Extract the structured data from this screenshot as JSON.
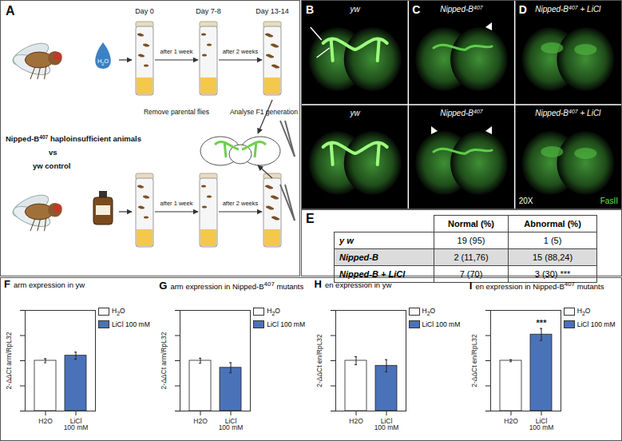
{
  "panel_A": {
    "label": "A",
    "days": [
      "Day 0",
      "Day 7-8",
      "Day 13-14"
    ],
    "rows": [
      {
        "treatment": "H2O",
        "steps": [
          "after 1 week",
          "after 2 weeks"
        ]
      },
      {
        "steps": [
          "after 1 week",
          "after 2 weeks"
        ]
      }
    ],
    "middle": [
      "Remove parental flies",
      "Analyse F1 generation"
    ],
    "genotypes": [
      "Nipped-B407 haploinsufficient animals",
      "vs",
      "yw control"
    ]
  },
  "panels_BD": {
    "panels": [
      {
        "label": "B",
        "titles": [
          "yw",
          "yw"
        ]
      },
      {
        "label": "C",
        "titles": [
          "Nipped-B407",
          "Nipped-B407"
        ]
      },
      {
        "label": "D",
        "titles": [
          "Nipped-B407 + LiCl",
          "Nipped-B407 + LiCl"
        ]
      }
    ],
    "magnification": "20X",
    "stain": "FasII"
  },
  "table": {
    "label": "E",
    "header": [
      "Normal (%)",
      "Abnormal (%)"
    ],
    "rows": [
      {
        "name": "y w",
        "cells": [
          "19 (95)",
          "1 (5)"
        ]
      },
      {
        "name": "Nipped-B",
        "cells": [
          "2 (11,76)",
          "15 (88,24)"
        ]
      },
      {
        "name": "Nipped-B + LiCl",
        "cells": [
          "7 (70)",
          "3 (30) ***"
        ]
      }
    ]
  },
  "chart_data": [
    {
      "type": "bar",
      "panel": "F",
      "title": "arm expression in yw",
      "y_label": "2-ΔΔCt arm/RpL32",
      "categories": [
        "H2O",
        "LiCl 100 mM"
      ],
      "series": [
        {
          "name": "H2O",
          "color": "#ffffff",
          "values": [
            1.0,
            null
          ],
          "errors": [
            0.04,
            null
          ]
        },
        {
          "name": "LiCl 100 mM",
          "color": "#4a72b8",
          "values": [
            null,
            1.1
          ],
          "errors": [
            null,
            0.07
          ]
        }
      ],
      "ylim": [
        0,
        2
      ],
      "yticks": [
        0,
        0.5,
        1,
        1.5,
        2
      ],
      "tick_labels": "x",
      "legend": "top-right"
    },
    {
      "type": "bar",
      "panel": "G",
      "title": "arm expression in Nipped-B407 mutants",
      "y_label": "2-ΔΔCt arm/RpL32",
      "categories": [
        "H2O",
        "LiCl 100 mM"
      ],
      "series": [
        {
          "name": "H2O",
          "color": "#ffffff",
          "values": [
            1.0,
            null
          ],
          "errors": [
            0.05,
            null
          ]
        },
        {
          "name": "LiCl 100 mM",
          "color": "#4a72b8",
          "values": [
            null,
            0.86
          ],
          "errors": [
            null,
            0.1
          ]
        }
      ],
      "ylim": [
        0,
        2
      ],
      "yticks": [
        0,
        0.5,
        1,
        1.5,
        2
      ],
      "tick_labels": "x",
      "legend": "top-right"
    },
    {
      "type": "bar",
      "panel": "H",
      "title": "en expression in yw",
      "y_label": "2-ΔΔCt en/RpL32",
      "categories": [
        "H2O",
        "LiCl 100 mM"
      ],
      "series": [
        {
          "name": "H2O",
          "color": "#ffffff",
          "values": [
            1.0,
            null
          ],
          "errors": [
            0.08,
            null
          ]
        },
        {
          "name": "LiCl 100 mM",
          "color": "#4a72b8",
          "values": [
            null,
            0.9
          ],
          "errors": [
            null,
            0.12
          ]
        }
      ],
      "ylim": [
        0,
        2
      ],
      "yticks": [
        0,
        0.5,
        1,
        1.5,
        2
      ],
      "tick_labels": "x",
      "legend": "top-right"
    },
    {
      "type": "bar",
      "panel": "I",
      "title": "en expression in Nipped-B407 mutants",
      "y_label": "2-ΔΔCt en/RpL32",
      "categories": [
        "H2O",
        "LiCl 100 mM"
      ],
      "series": [
        {
          "name": "H2O",
          "color": "#ffffff",
          "values": [
            1.0,
            null
          ],
          "errors": [
            0.02,
            null
          ]
        },
        {
          "name": "LiCl 100 mM",
          "color": "#4a72b8",
          "values": [
            null,
            1.52
          ],
          "errors": [
            null,
            0.12
          ]
        }
      ],
      "annotations": [
        {
          "category": "LiCl 100 mM",
          "text": "***"
        }
      ],
      "ylim": [
        0,
        2
      ],
      "yticks": [
        0,
        0.5,
        1,
        1.5,
        2
      ],
      "tick_labels": "x",
      "legend": "top-right"
    }
  ]
}
